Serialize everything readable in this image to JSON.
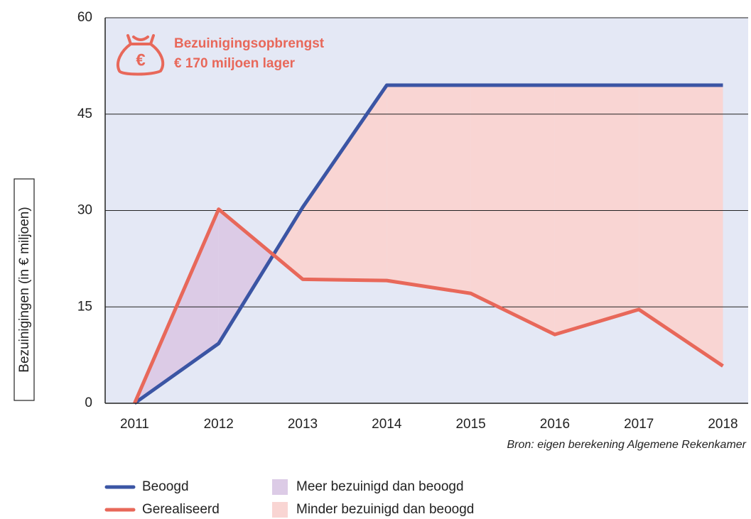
{
  "chart_data": {
    "type": "line",
    "y_label": "Bezuinigingen (in € miljoen)",
    "annotation": {
      "icon_label": "€",
      "lines": [
        "Bezuinigingsopbrengst",
        "€ 170 miljoen lager"
      ],
      "color": "#e8685a"
    },
    "source": "Bron: eigen berekening Algemene Rekenkamer",
    "x": [
      2011,
      2012,
      2013,
      2014,
      2015,
      2016,
      2017,
      2018
    ],
    "xlim": [
      2010.65,
      2018.3
    ],
    "xticks": [
      2011,
      2012,
      2013,
      2014,
      2015,
      2016,
      2017,
      2018
    ],
    "ylim": [
      0,
      60
    ],
    "yticks": [
      0,
      15,
      30,
      45,
      60
    ],
    "grid": true,
    "series": [
      {
        "name": "Beoogd",
        "color": "#3b55a4",
        "values": [
          0,
          9.3,
          30.5,
          49.5,
          49.5,
          49.5,
          49.5,
          49.5
        ]
      },
      {
        "name": "Gerealiseerd",
        "color": "#e8685a",
        "values": [
          0,
          30.2,
          19.3,
          19.1,
          17.1,
          10.7,
          14.6,
          5.8
        ]
      }
    ],
    "fills": [
      {
        "name": "Meer bezuinigd dan beoogd",
        "color": "#dccbe6"
      },
      {
        "name": "Minder bezuinigd dan beoogd",
        "color": "#f9d5d3"
      }
    ]
  }
}
